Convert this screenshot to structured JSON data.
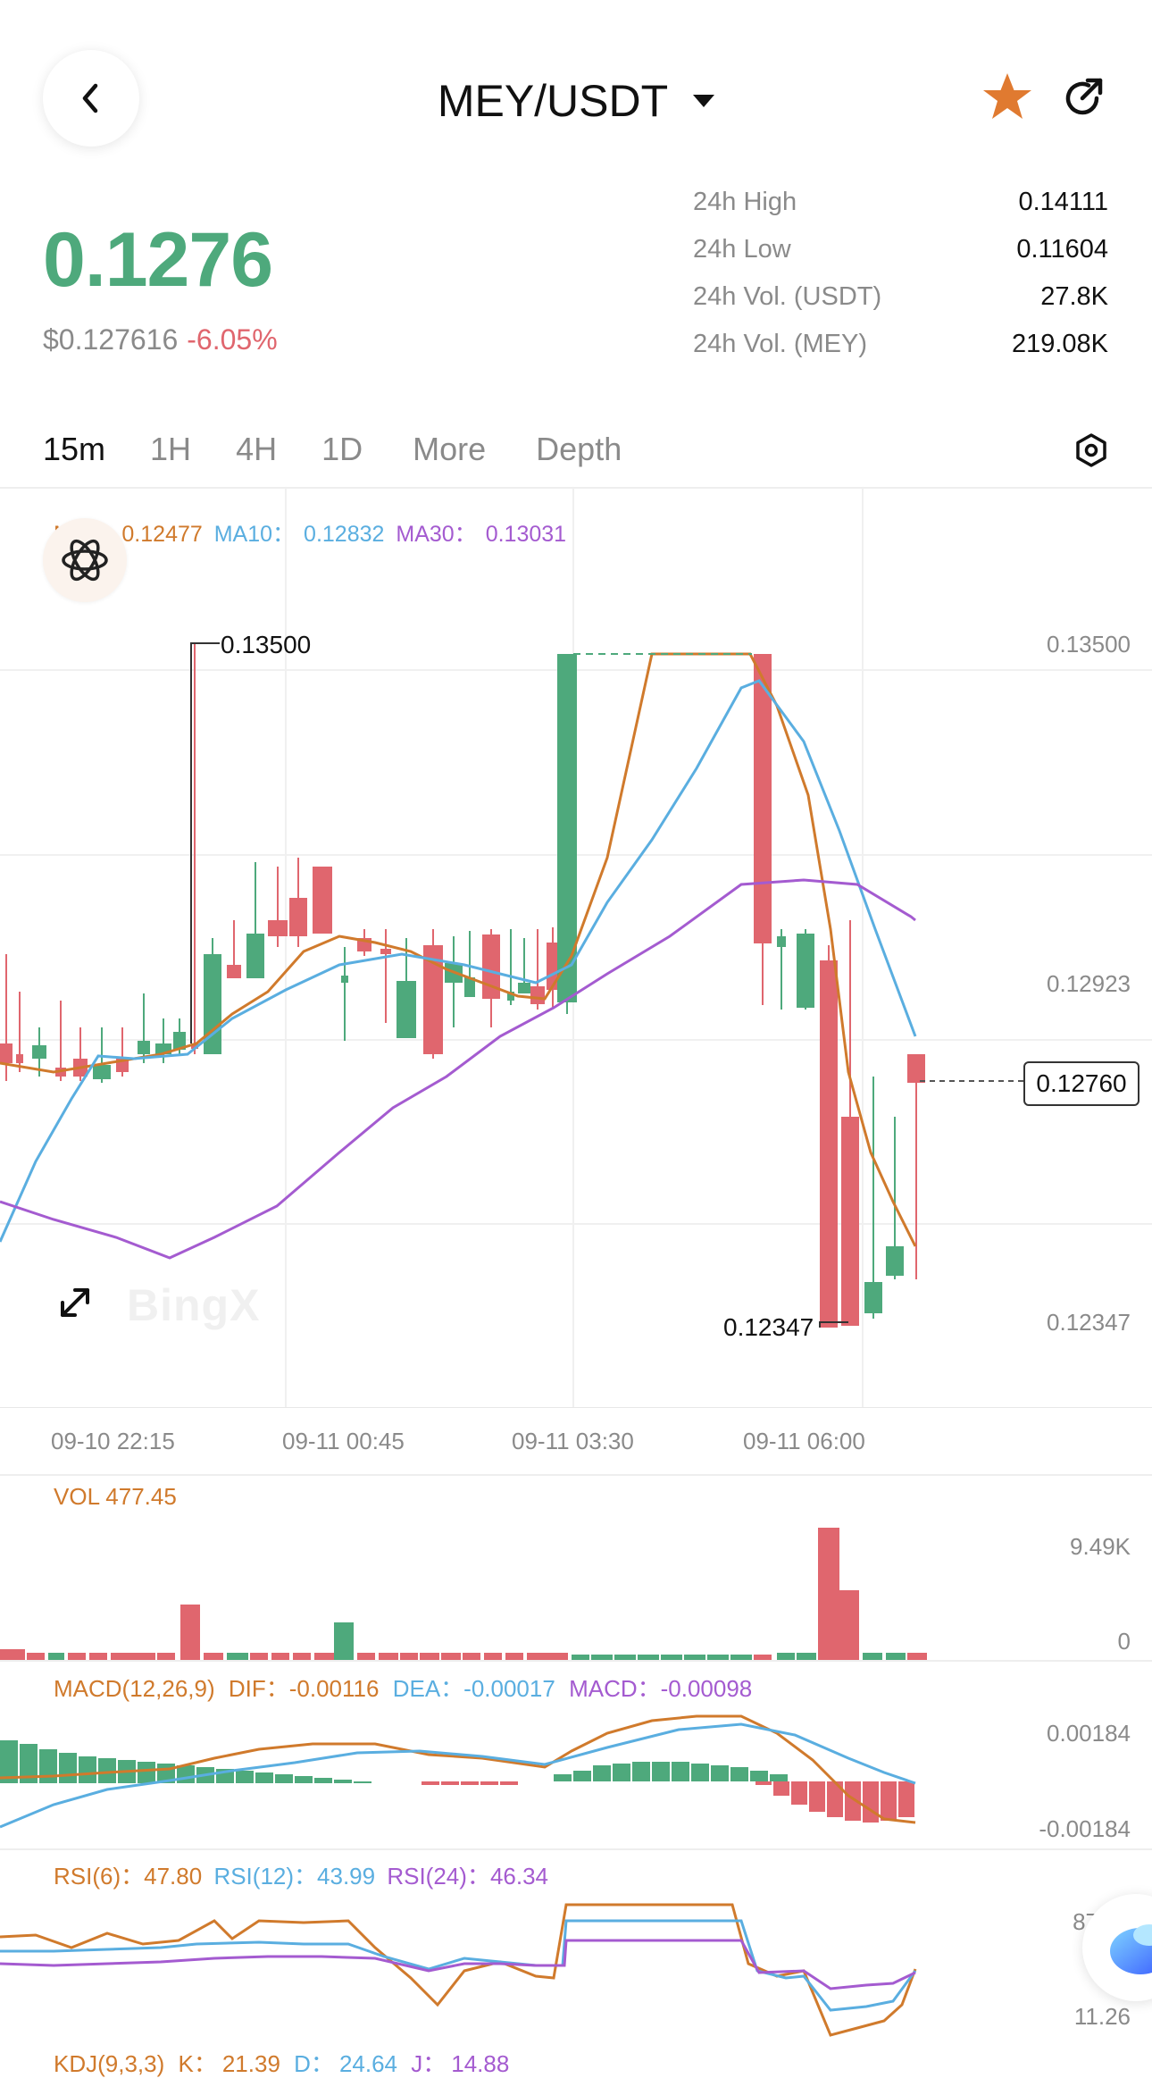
{
  "header": {
    "pair": "MEY/USDT"
  },
  "price": {
    "last": "0.1276",
    "usd": "$0.127616",
    "change": "-6.05%"
  },
  "stats": [
    {
      "label": "24h High",
      "value": "0.14111"
    },
    {
      "label": "24h Low",
      "value": "0.11604"
    },
    {
      "label": "24h Vol. (USDT)",
      "value": "27.8K"
    },
    {
      "label": "24h Vol. (MEY)",
      "value": "219.08K"
    }
  ],
  "tabs": [
    "15m",
    "1H",
    "4H",
    "1D",
    "More",
    "Depth"
  ],
  "active_tab": "15m",
  "ma_legend": {
    "ma5_label": "MA5：",
    "ma5_value": "0.12477",
    "ma10_label": "MA10：",
    "ma10_value": "0.12832",
    "ma30_label": "MA30：",
    "ma30_value": "0.13031"
  },
  "watermark": "BingX",
  "price_axis": [
    "0.13500",
    "0.12923",
    "0.12347"
  ],
  "current_price_tag": "0.12760",
  "high_marker": "0.13500",
  "low_marker": "0.12347",
  "dates": [
    "09-10 22:15",
    "09-11 00:45",
    "09-11 03:30",
    "09-11 06:00"
  ],
  "volume": {
    "label": "VOL 477.45",
    "axis": [
      "9.49K",
      "0"
    ]
  },
  "macd": {
    "title": "MACD(12,26,9)",
    "dif_label": "DIF：",
    "dif": "-0.00116",
    "dea_label": "DEA：",
    "dea": "-0.00017",
    "macd_label": "MACD：",
    "macd": "-0.00098",
    "axis": [
      "0.00184",
      "-0.00184"
    ]
  },
  "rsi": {
    "rsi6_label": "RSI(6)：",
    "rsi6": "47.80",
    "rsi12_label": "RSI(12)：",
    "rsi12": "43.99",
    "rsi24_label": "RSI(24)：",
    "rsi24": "46.34",
    "axis": [
      "87",
      "11.26"
    ]
  },
  "kdj": {
    "title": "KDJ(9,3,3)",
    "k_label": "K：",
    "k": "21.39",
    "d_label": "D：",
    "d": "24.64",
    "j_label": "J：",
    "j": "14.88"
  },
  "colors": {
    "up": "#4ea97c",
    "down": "#e0666e",
    "ma5": "#d07a2c",
    "ma10": "#5aaee0",
    "ma30": "#a45bd0",
    "accent_star": "#e07a30"
  },
  "chart_data": {
    "type": "candlestick",
    "x": [
      "09-10 22:15",
      "09-11 00:45",
      "09-11 03:30",
      "09-11 06:00"
    ],
    "y_ticks": [
      0.135,
      0.12923,
      0.12347
    ],
    "last_price": 0.1276,
    "high": 0.135,
    "low": 0.12347,
    "series": [
      {
        "name": "MA5",
        "last": 0.12477
      },
      {
        "name": "MA10",
        "last": 0.12832
      },
      {
        "name": "MA30",
        "last": 0.13031
      }
    ],
    "volume_axis": [
      9490,
      0
    ],
    "macd_axis": [
      0.00184,
      -0.00184
    ],
    "rsi_axis": [
      87,
      11.26
    ]
  }
}
